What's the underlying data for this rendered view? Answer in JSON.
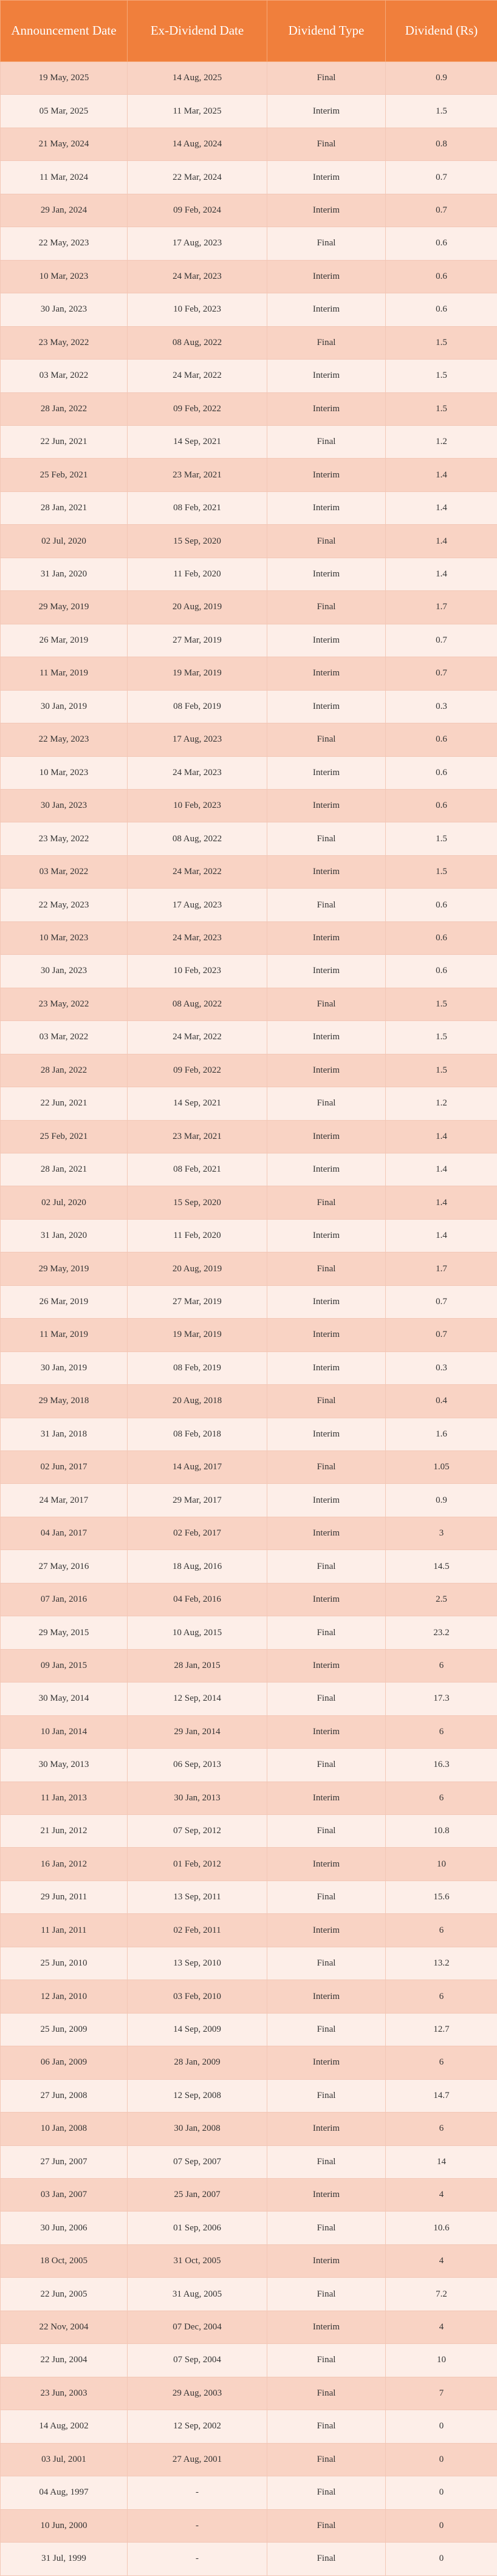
{
  "table": {
    "headers": [
      "Announcement Date",
      "Ex-Dividend Date",
      "Dividend Type",
      "Dividend (Rs)"
    ],
    "rows": [
      [
        "19 May, 2025",
        "14 Aug, 2025",
        "Final",
        0.9
      ],
      [
        "05 Mar, 2025",
        "11 Mar, 2025",
        "Interim",
        1.5
      ],
      [
        "21 May, 2024",
        "14 Aug, 2024",
        "Final",
        0.8
      ],
      [
        "11 Mar, 2024",
        "22 Mar, 2024",
        "Interim",
        0.7
      ],
      [
        "29 Jan, 2024",
        "09 Feb, 2024",
        "Interim",
        0.7
      ],
      [
        "22 May, 2023",
        "17 Aug, 2023",
        "Final",
        0.6
      ],
      [
        "10 Mar, 2023",
        "24 Mar, 2023",
        "Interim",
        0.6
      ],
      [
        "30 Jan, 2023",
        "10 Feb, 2023",
        "Interim",
        0.6
      ],
      [
        "23 May, 2022",
        "08 Aug, 2022",
        "Final",
        1.5
      ],
      [
        "03 Mar, 2022",
        "24 Mar, 2022",
        "Interim",
        1.5
      ],
      [
        "28 Jan, 2022",
        "09 Feb, 2022",
        "Interim",
        1.5
      ],
      [
        "22 Jun, 2021",
        "14 Sep, 2021",
        "Final",
        1.2
      ],
      [
        "25 Feb, 2021",
        "23 Mar, 2021",
        "Interim",
        1.4
      ],
      [
        "28 Jan, 2021",
        "08 Feb, 2021",
        "Interim",
        1.4
      ],
      [
        "02 Jul, 2020",
        "15 Sep, 2020",
        "Final",
        1.4
      ],
      [
        "31 Jan, 2020",
        "11 Feb, 2020",
        "Interim",
        1.4
      ],
      [
        "29 May, 2019",
        "20 Aug, 2019",
        "Final",
        1.7
      ],
      [
        "26 Mar, 2019",
        "27 Mar, 2019",
        "Interim",
        0.7
      ],
      [
        "11 Mar, 2019",
        "19 Mar, 2019",
        "Interim",
        0.7
      ],
      [
        "30 Jan, 2019",
        "08 Feb, 2019",
        "Interim",
        0.3
      ],
      [
        "22 May, 2023",
        "17 Aug, 2023",
        "Final",
        0.6
      ],
      [
        "10 Mar, 2023",
        "24 Mar, 2023",
        "Interim",
        0.6
      ],
      [
        "30 Jan, 2023",
        "10 Feb, 2023",
        "Interim",
        0.6
      ],
      [
        "23 May, 2022",
        "08 Aug, 2022",
        "Final",
        1.5
      ],
      [
        "03 Mar, 2022",
        "24 Mar, 2022",
        "Interim",
        1.5
      ],
      [
        "22 May, 2023",
        "17 Aug, 2023",
        "Final",
        0.6
      ],
      [
        "10 Mar, 2023",
        "24 Mar, 2023",
        "Interim",
        0.6
      ],
      [
        "30 Jan, 2023",
        "10 Feb, 2023",
        "Interim",
        0.6
      ],
      [
        "23 May, 2022",
        "08 Aug, 2022",
        "Final",
        1.5
      ],
      [
        "03 Mar, 2022",
        "24 Mar, 2022",
        "Interim",
        1.5
      ],
      [
        "28 Jan, 2022",
        "09 Feb, 2022",
        "Interim",
        1.5
      ],
      [
        "22 Jun, 2021",
        "14 Sep, 2021",
        "Final",
        1.2
      ],
      [
        "25 Feb, 2021",
        "23 Mar, 2021",
        "Interim",
        1.4
      ],
      [
        "28 Jan, 2021",
        "08 Feb, 2021",
        "Interim",
        1.4
      ],
      [
        "02 Jul, 2020",
        "15 Sep, 2020",
        "Final",
        1.4
      ],
      [
        "31 Jan, 2020",
        "11 Feb, 2020",
        "Interim",
        1.4
      ],
      [
        "29 May, 2019",
        "20 Aug, 2019",
        "Final",
        1.7
      ],
      [
        "26 Mar, 2019",
        "27 Mar, 2019",
        "Interim",
        0.7
      ],
      [
        "11 Mar, 2019",
        "19 Mar, 2019",
        "Interim",
        0.7
      ],
      [
        "30 Jan, 2019",
        "08 Feb, 2019",
        "Interim",
        0.3
      ],
      [
        "29 May, 2018",
        "20 Aug, 2018",
        "Final",
        0.4
      ],
      [
        "31 Jan, 2018",
        "08 Feb, 2018",
        "Interim",
        1.6
      ],
      [
        "02 Jun, 2017",
        "14 Aug, 2017",
        "Final",
        1.05
      ],
      [
        "24 Mar, 2017",
        "29 Mar, 2017",
        "Interim",
        0.9
      ],
      [
        "04 Jan, 2017",
        "02 Feb, 2017",
        "Interim",
        3
      ],
      [
        "27 May, 2016",
        "18 Aug, 2016",
        "Final",
        14.5
      ],
      [
        "07 Jan, 2016",
        "04 Feb, 2016",
        "Interim",
        2.5
      ],
      [
        "29 May, 2015",
        "10 Aug, 2015",
        "Final",
        23.2
      ],
      [
        "09 Jan, 2015",
        "28 Jan, 2015",
        "Interim",
        6
      ],
      [
        "30 May, 2014",
        "12 Sep, 2014",
        "Final",
        17.3
      ],
      [
        "10 Jan, 2014",
        "29 Jan, 2014",
        "Interim",
        6
      ],
      [
        "30 May, 2013",
        "06 Sep, 2013",
        "Final",
        16.3
      ],
      [
        "11 Jan, 2013",
        "30 Jan, 2013",
        "Interim",
        6
      ],
      [
        "21 Jun, 2012",
        "07 Sep, 2012",
        "Final",
        10.8
      ],
      [
        "16 Jan, 2012",
        "01 Feb, 2012",
        "Interim",
        10
      ],
      [
        "29 Jun, 2011",
        "13 Sep, 2011",
        "Final",
        15.6
      ],
      [
        "11 Jan, 2011",
        "02 Feb, 2011",
        "Interim",
        6
      ],
      [
        "25 Jun, 2010",
        "13 Sep, 2010",
        "Final",
        13.2
      ],
      [
        "12 Jan, 2010",
        "03 Feb, 2010",
        "Interim",
        6
      ],
      [
        "25 Jun, 2009",
        "14 Sep, 2009",
        "Final",
        12.7
      ],
      [
        "06 Jan, 2009",
        "28 Jan, 2009",
        "Interim",
        6
      ],
      [
        "27 Jun, 2008",
        "12 Sep, 2008",
        "Final",
        14.7
      ],
      [
        "10 Jan, 2008",
        "30 Jan, 2008",
        "Interim",
        6
      ],
      [
        "27 Jun, 2007",
        "07 Sep, 2007",
        "Final",
        14
      ],
      [
        "03 Jan, 2007",
        "25 Jan, 2007",
        "Interim",
        4
      ],
      [
        "30 Jun, 2006",
        "01 Sep, 2006",
        "Final",
        10.6
      ],
      [
        "18 Oct, 2005",
        "31 Oct, 2005",
        "Interim",
        4
      ],
      [
        "22 Jun, 2005",
        "31 Aug, 2005",
        "Final",
        7.2
      ],
      [
        "22 Nov, 2004",
        "07 Dec, 2004",
        "Interim",
        4
      ],
      [
        "22 Jun, 2004",
        "07 Sep, 2004",
        "Final",
        10
      ],
      [
        "23 Jun, 2003",
        "29 Aug, 2003",
        "Final",
        7
      ],
      [
        "14 Aug, 2002",
        "12 Sep, 2002",
        "Final",
        0
      ],
      [
        "03 Jul, 2001",
        "27 Aug, 2001",
        "Final",
        0
      ],
      [
        "04 Aug, 1997",
        "-",
        "Final",
        0
      ],
      [
        "10 Jun, 2000",
        "-",
        "Final",
        0
      ],
      [
        "31 Jul, 1999",
        "-",
        "Final",
        0
      ]
    ]
  }
}
